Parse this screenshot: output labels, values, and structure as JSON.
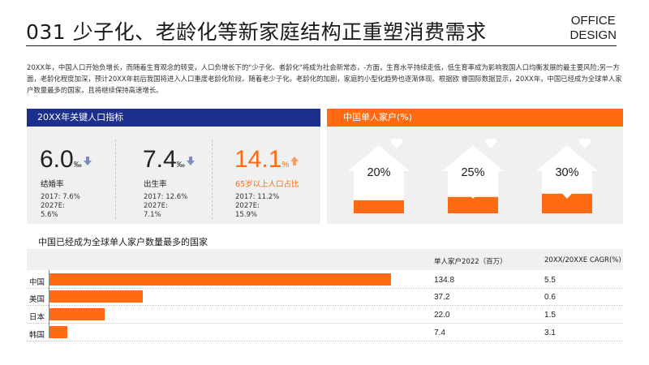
{
  "header": {
    "title": "031 少子化、老龄化等新家庭结构正重塑消费需求",
    "brand_line1": "OFFICE",
    "brand_line2": "DESIGN"
  },
  "intro": "20XX年，中国人口开始负增长，而随着生育观念的转变，人口负增长下的\"少子化、者龄化\"将成为社会新常态，-方面，生育水平持续走低，低生育率成为影响我国人口均衡发展的最主要风险;另一方面，老龄化程度加深，预计20XX年前后我国将进入人口重度老龄化阶段。随着老少子化。老龄化的加剧，家庭的小型化趋势也逐渐体现。根据欧 睿国际数据显示，20XX年，中国已经成为全球单人家户数量最多的国家，且将继续保持高速增长。",
  "kpi_panel": {
    "title": "20XX年关键人口指标",
    "items": [
      {
        "value": "6.0",
        "unit": "‰",
        "label": "结婚率",
        "line1": "2017: 7.6%",
        "line2": "2027E:",
        "line3": "5.6%",
        "trend": "down"
      },
      {
        "value": "7.4",
        "unit": "‰",
        "label": "出生率",
        "line1": "2017: 12.6%",
        "line2": "2027E:",
        "line3": "7.1%",
        "trend": "down"
      },
      {
        "value": "14.1",
        "unit": "%",
        "label": "65岁以上人口占比",
        "line1": "2017: 11.2%",
        "line2": "2027E:",
        "line3": "15.9%",
        "trend": "up"
      }
    ],
    "colors": {
      "down": "#7b8ac4",
      "up": "#ff9a66"
    }
  },
  "single_panel": {
    "title": "中国单人家户(%)",
    "houses": [
      {
        "pct": "20%",
        "fill": 0.2
      },
      {
        "pct": "25%",
        "fill": 0.25
      },
      {
        "pct": "30%",
        "fill": 0.3
      }
    ]
  },
  "bar_section": {
    "title": "中国已经成为全球单人家户数量最多的国家",
    "col1_header": "单人家户2022（百万）",
    "col2_header": "20XX/20XXE CAGR(%)"
  },
  "chart_data": {
    "type": "bar",
    "orientation": "horizontal",
    "title": "中国已经成为全球单人家户数量最多的国家",
    "categories": [
      "中国",
      "美国",
      "日本",
      "韩国"
    ],
    "series": [
      {
        "name": "单人家户2022（百万）",
        "values": [
          134.8,
          37.2,
          22.0,
          7.4
        ]
      }
    ],
    "value_labels": [
      "134.8",
      "37.2",
      "22.0",
      "7.4"
    ],
    "cagr_labels": [
      "5.5",
      "0.6",
      "1.5",
      "3.1"
    ],
    "xlim": [
      0,
      134.8
    ],
    "grid": false
  },
  "accent": {
    "blue": "#1c2f8f",
    "orange": "#ff6a13"
  }
}
